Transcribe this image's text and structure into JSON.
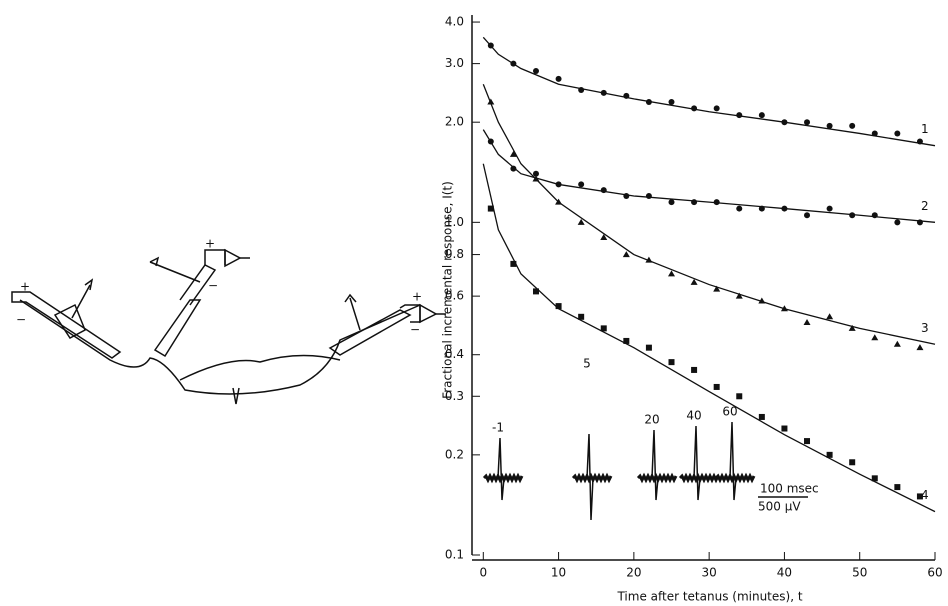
{
  "diagram": {
    "signs": [
      "+",
      "−",
      "+",
      "−",
      "+",
      "−"
    ]
  },
  "chart_data": {
    "type": "scatter",
    "xlabel": "Time after tetanus (minutes), t",
    "ylabel": "Fractional incremental response, I(t)",
    "xlim": [
      -1.5,
      60
    ],
    "ylim": [
      0.1,
      4.2
    ],
    "log_y": true,
    "xticks": [
      0,
      10,
      20,
      30,
      40,
      50,
      60
    ],
    "yticks": [
      0.1,
      0.2,
      0.3,
      0.4,
      0.6,
      0.8,
      {
        "value": 1,
        "label": "1.0"
      },
      {
        "value": 2,
        "label": "2.0"
      },
      {
        "value": 3,
        "label": "3.0"
      },
      {
        "value": 4,
        "label": "4.0"
      }
    ],
    "x": [
      1,
      4,
      7,
      10,
      13,
      16,
      19,
      22,
      25,
      28,
      31,
      34,
      37,
      40,
      43,
      46,
      49,
      52,
      55,
      58
    ],
    "fit_x": [
      0,
      2,
      5,
      10,
      20,
      30,
      40,
      50,
      60
    ],
    "series": [
      {
        "name": "1",
        "color": "#111",
        "marker": "circle",
        "values": [
          3.4,
          3.0,
          2.85,
          2.7,
          2.5,
          2.45,
          2.4,
          2.3,
          2.3,
          2.2,
          2.2,
          2.1,
          2.1,
          2.0,
          2.0,
          1.95,
          1.95,
          1.85,
          1.85,
          1.75
        ],
        "fit": [
          3.6,
          3.2,
          2.9,
          2.6,
          2.35,
          2.15,
          2.0,
          1.85,
          1.7
        ]
      },
      {
        "name": "2",
        "color": "#111",
        "marker": "circle",
        "values": [
          1.75,
          1.45,
          1.4,
          1.3,
          1.3,
          1.25,
          1.2,
          1.2,
          1.15,
          1.15,
          1.15,
          1.1,
          1.1,
          1.1,
          1.05,
          1.1,
          1.05,
          1.05,
          1.0,
          1.0
        ],
        "fit": [
          1.9,
          1.6,
          1.4,
          1.3,
          1.2,
          1.15,
          1.1,
          1.05,
          1.0
        ]
      },
      {
        "name": "3",
        "color": "#111",
        "marker": "triangle",
        "values": [
          2.3,
          1.6,
          1.35,
          1.15,
          1.0,
          0.9,
          0.8,
          0.77,
          0.7,
          0.66,
          0.63,
          0.6,
          0.58,
          0.55,
          0.5,
          0.52,
          0.48,
          0.45,
          0.43,
          0.42
        ],
        "fit": [
          2.6,
          2.0,
          1.5,
          1.15,
          0.8,
          0.65,
          0.55,
          0.48,
          0.43
        ]
      },
      {
        "name": "4",
        "color": "#111",
        "marker": "square",
        "values": [
          1.1,
          0.75,
          0.62,
          0.56,
          0.52,
          0.48,
          0.44,
          0.42,
          0.38,
          0.36,
          0.32,
          0.3,
          0.26,
          0.24,
          0.22,
          0.2,
          0.19,
          0.17,
          0.16,
          0.15
        ],
        "fit": [
          1.5,
          0.95,
          0.7,
          0.55,
          0.42,
          0.31,
          0.23,
          0.175,
          0.135
        ]
      }
    ],
    "inset_labels": [
      "-1",
      "5",
      "20",
      "40",
      "60"
    ],
    "scale_labels": [
      "100 msec",
      "500 μV"
    ]
  }
}
